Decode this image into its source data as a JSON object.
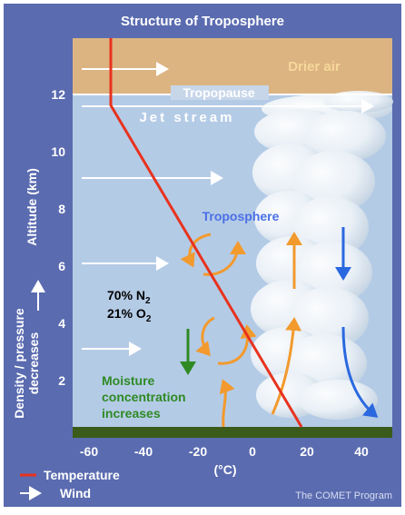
{
  "title": "Structure of Troposphere",
  "credit": "The COMET Program",
  "layers": {
    "drier_air": "Drier air",
    "tropopause": "Tropopause",
    "jet_stream": "Jet stream",
    "troposphere": "Troposphere"
  },
  "gases": {
    "n2_prefix": "70% N",
    "n2_sub": "2",
    "o2_prefix": "21% O",
    "o2_sub": "2"
  },
  "moisture_label": [
    "Moisture",
    "concentration",
    "increases"
  ],
  "axes": {
    "y_label": "Altitude (km)",
    "x_label": "(°C)",
    "y_ticks": [
      "12",
      "10",
      "8",
      "6",
      "4",
      "2"
    ],
    "x_ticks": [
      "-60",
      "-40",
      "-20",
      "0",
      "20",
      "40"
    ]
  },
  "density_label": [
    "Density / pressure",
    "decreases"
  ],
  "legend": {
    "temperature": "Temperature",
    "wind": "Wind"
  },
  "colors": {
    "background": "#5a6bb0",
    "sky": "#b4cbe6",
    "drier_air": "#dcb482",
    "ground": "#3b5b1a",
    "temperature_line": "#e8321e",
    "warm_arrow": "#f29a2e",
    "cold_arrow": "#2a68e0",
    "moisture": "#2f8a24",
    "troposphere_label": "#4a6fe6",
    "drier_air_label": "#f6d89a"
  }
}
